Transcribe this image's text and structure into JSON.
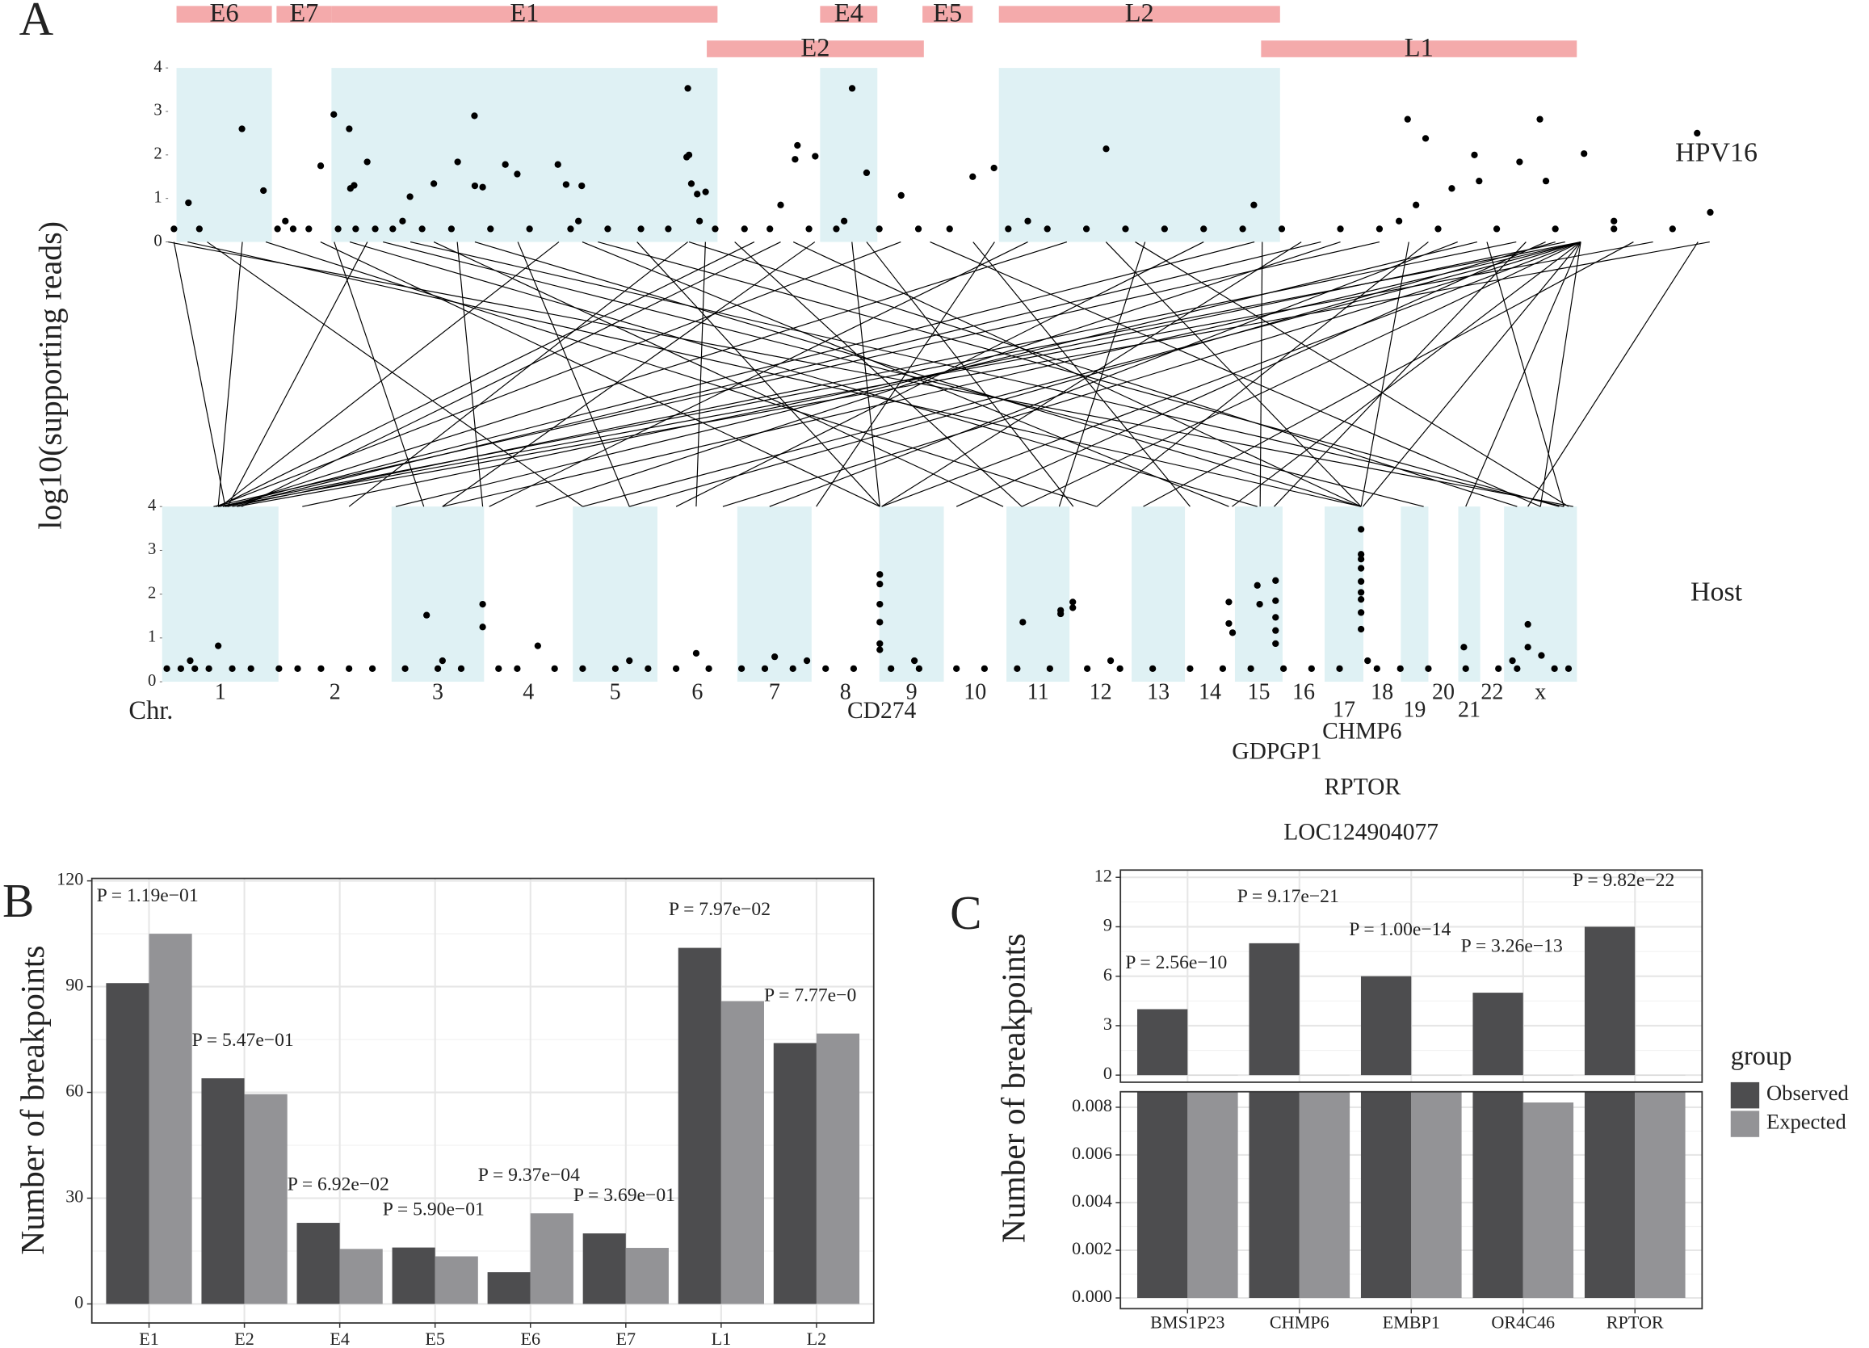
{
  "chart_data": [
    {
      "panel": "A",
      "type": "genome_scatter",
      "ylabel": "log10(supporting reads)",
      "ylim": [
        0,
        4
      ],
      "yticks": [
        0,
        1,
        2,
        3,
        4
      ],
      "genes": [
        {
          "name": "E6",
          "start": 43,
          "end": 531,
          "shaded": true
        },
        {
          "name": "E7",
          "start": 555,
          "end": 836,
          "shaded": false
        },
        {
          "name": "E1",
          "start": 836,
          "end": 2812,
          "shaded": true
        },
        {
          "name": "E2",
          "start": 2757,
          "end": 3868,
          "shaded": false
        },
        {
          "name": "E4",
          "start": 3337,
          "end": 3630,
          "shaded": true
        },
        {
          "name": "E5",
          "start": 3861,
          "end": 4118,
          "shaded": false
        },
        {
          "name": "L2",
          "start": 4252,
          "end": 5691,
          "shaded": true
        },
        {
          "name": "L1",
          "start": 5594,
          "end": 7210,
          "shaded": false
        }
      ],
      "tracks": [
        {
          "name": "HPV16",
          "xlim": [
            0,
            7906
          ],
          "x": [
            378,
            104,
            488,
            781,
            848,
            927,
            933,
            952,
            1019,
            1238,
            1360,
            1482,
            1568,
            1570,
            1610,
            1726,
            1787,
            1995,
            2037,
            2117,
            2660,
            2654,
            2666,
            2678,
            2708,
            2751,
            3135,
            3209,
            3221,
            3312,
            3501,
            3575,
            3752,
            4118,
            4227,
            4801,
            5557,
            6344,
            6436,
            6387,
            6570,
            6686,
            6710,
            6917,
            7021,
            7052,
            7247,
            7826,
            7893,
            30,
            160,
            560,
            640,
            720,
            870,
            960,
            1060,
            1150,
            1300,
            1450,
            1650,
            1850,
            2060,
            2250,
            2420,
            2560,
            2800,
            2950,
            3080,
            3280,
            3420,
            3640,
            3840,
            4000,
            4300,
            4500,
            4700,
            4900,
            5100,
            5300,
            5500,
            5700,
            6000,
            6200,
            6500,
            6800,
            7100,
            7400,
            7700,
            600,
            1200,
            2100,
            2720,
            3460,
            4400,
            6300,
            7400
          ],
          "values": [
            2.6,
            0.9,
            1.18,
            1.75,
            2.93,
            2.6,
            1.23,
            1.3,
            1.84,
            1.04,
            1.34,
            1.84,
            2.9,
            1.29,
            1.26,
            1.78,
            1.56,
            1.78,
            1.32,
            1.29,
            3.53,
            1.95,
            2.0,
            1.34,
            1.1,
            1.15,
            0.85,
            1.9,
            2.22,
            1.97,
            3.53,
            1.59,
            1.07,
            1.5,
            1.7,
            2.14,
            0.85,
            2.82,
            2.38,
            0.85,
            1.23,
            2.0,
            1.4,
            1.84,
            2.82,
            1.4,
            2.03,
            2.5,
            0.68,
            0.3,
            0.3,
            0.3,
            0.3,
            0.3,
            0.3,
            0.3,
            0.3,
            0.3,
            0.3,
            0.3,
            0.3,
            0.3,
            0.3,
            0.3,
            0.3,
            0.3,
            0.3,
            0.3,
            0.3,
            0.3,
            0.3,
            0.3,
            0.3,
            0.3,
            0.3,
            0.3,
            0.3,
            0.3,
            0.3,
            0.3,
            0.3,
            0.3,
            0.3,
            0.3,
            0.3,
            0.3,
            0.3,
            0.3,
            0.3,
            0.48,
            0.48,
            0.48,
            0.48,
            0.48,
            0.48,
            0.48,
            0.48
          ]
        },
        {
          "name": "Host",
          "xlim": [
            0,
            3028
          ],
          "axis_label": "Chr.",
          "chromosomes": [
            {
              "name": "1",
              "length": 249
            },
            {
              "name": "2",
              "length": 242
            },
            {
              "name": "3",
              "length": 198
            },
            {
              "name": "4",
              "length": 190
            },
            {
              "name": "5",
              "length": 181
            },
            {
              "name": "6",
              "length": 171
            },
            {
              "name": "7",
              "length": 159
            },
            {
              "name": "8",
              "length": 145
            },
            {
              "name": "9",
              "length": 138
            },
            {
              "name": "10",
              "length": 134
            },
            {
              "name": "11",
              "length": 135
            },
            {
              "name": "12",
              "length": 133
            },
            {
              "name": "13",
              "length": 114
            },
            {
              "name": "14",
              "length": 107
            },
            {
              "name": "15",
              "length": 102
            },
            {
              "name": "16",
              "length": 90
            },
            {
              "name": "17",
              "length": 83
            },
            {
              "name": "18",
              "length": 80
            },
            {
              "name": "19",
              "length": 59
            },
            {
              "name": "20",
              "length": 64
            },
            {
              "name": "21",
              "length": 47
            },
            {
              "name": "22",
              "length": 51
            },
            {
              "name": "x",
              "length": 156
            }
          ],
          "x": [
            120,
            566,
            686,
            686,
            804,
            1143,
            1311,
            1536,
            1536,
            1536,
            1536,
            1536,
            1536,
            1842,
            1923,
            1923,
            1949,
            1949,
            2283,
            2283,
            2291,
            2344,
            2349,
            2383,
            2383,
            2383,
            2383,
            2383,
            2566,
            2566,
            2566,
            2566,
            2566,
            2566,
            2566,
            2566,
            2566,
            2786,
            2923,
            2923,
            2952,
            10,
            40,
            70,
            100,
            150,
            190,
            250,
            290,
            340,
            400,
            450,
            520,
            590,
            640,
            720,
            760,
            840,
            900,
            970,
            1040,
            1100,
            1170,
            1240,
            1290,
            1350,
            1420,
            1480,
            1560,
            1620,
            1700,
            1760,
            1830,
            1900,
            1980,
            2050,
            2120,
            2200,
            2270,
            2330,
            2400,
            2460,
            2520,
            2600,
            2650,
            2710,
            2790,
            2860,
            2900,
            2980,
            3010,
            60,
            600,
            1000,
            1380,
            1610,
            2030,
            2580,
            2890
          ],
          "values": [
            0.82,
            1.52,
            1.77,
            1.25,
            0.82,
            0.65,
            0.57,
            2.45,
            2.23,
            1.77,
            1.36,
            0.87,
            0.73,
            1.36,
            1.63,
            1.55,
            1.82,
            1.69,
            1.82,
            1.33,
            1.12,
            2.2,
            1.77,
            2.31,
            1.85,
            1.47,
            1.17,
            0.87,
            3.48,
            2.91,
            2.8,
            2.59,
            2.29,
            2.04,
            1.88,
            1.58,
            1.2,
            0.79,
            1.31,
            0.79,
            0.6,
            0.3,
            0.3,
            0.3,
            0.3,
            0.3,
            0.3,
            0.3,
            0.3,
            0.3,
            0.3,
            0.3,
            0.3,
            0.3,
            0.3,
            0.3,
            0.3,
            0.3,
            0.3,
            0.3,
            0.3,
            0.3,
            0.3,
            0.3,
            0.3,
            0.3,
            0.3,
            0.3,
            0.3,
            0.3,
            0.3,
            0.3,
            0.3,
            0.3,
            0.3,
            0.3,
            0.3,
            0.3,
            0.3,
            0.3,
            0.3,
            0.3,
            0.3,
            0.3,
            0.3,
            0.3,
            0.3,
            0.3,
            0.3,
            0.3,
            0.3,
            0.48,
            0.48,
            0.48,
            0.48,
            0.48,
            0.48,
            0.48,
            0.48
          ],
          "annotations": [
            {
              "label": "CD274",
              "x": 1540
            },
            {
              "label": "CHMP6",
              "x": 2568
            },
            {
              "label": "GDPGP1",
              "x": 2386
            },
            {
              "label": "RPTOR",
              "x": 2569
            },
            {
              "label": "LOC124904077",
              "x": 2566
            }
          ]
        }
      ],
      "links": [
        [
          7230,
          120
        ],
        [
          7230,
          600
        ],
        [
          7230,
          900
        ],
        [
          7230,
          1200
        ],
        [
          7230,
          1540
        ],
        [
          7230,
          1840
        ],
        [
          7230,
          2290
        ],
        [
          7230,
          2570
        ],
        [
          7230,
          2790
        ],
        [
          7230,
          2950
        ],
        [
          7150,
          300
        ],
        [
          7100,
          1000
        ],
        [
          7050,
          1700
        ],
        [
          6950,
          2380
        ],
        [
          6900,
          150
        ],
        [
          6700,
          500
        ],
        [
          6600,
          1300
        ],
        [
          6450,
          2000
        ],
        [
          6350,
          2566
        ],
        [
          6200,
          110
        ],
        [
          6000,
          800
        ],
        [
          5800,
          1540
        ],
        [
          5600,
          2350
        ],
        [
          5560,
          130
        ],
        [
          5300,
          1100
        ],
        [
          5000,
          1920
        ],
        [
          4800,
          2566
        ],
        [
          4600,
          140
        ],
        [
          4400,
          700
        ],
        [
          4230,
          1400
        ],
        [
          4120,
          2200
        ],
        [
          3900,
          2950
        ],
        [
          3750,
          115
        ],
        [
          3575,
          1950
        ],
        [
          3500,
          1536
        ],
        [
          3310,
          600
        ],
        [
          3200,
          2566
        ],
        [
          3135,
          170
        ],
        [
          2900,
          1840
        ],
        [
          2750,
          1143
        ],
        [
          2666,
          2900
        ],
        [
          2660,
          400
        ],
        [
          2400,
          1536
        ],
        [
          2120,
          2283
        ],
        [
          2000,
          125
        ],
        [
          1790,
          1000
        ],
        [
          1570,
          2566
        ],
        [
          1480,
          686
        ],
        [
          1360,
          1800
        ],
        [
          1240,
          3000
        ],
        [
          1020,
          140
        ],
        [
          930,
          2344
        ],
        [
          850,
          560
        ],
        [
          780,
          1536
        ],
        [
          500,
          2000
        ],
        [
          380,
          120
        ],
        [
          200,
          900
        ],
        [
          100,
          2566
        ],
        [
          30,
          135
        ],
        [
          0,
          3020
        ],
        [
          7830,
          2923
        ],
        [
          7890,
          160
        ],
        [
          7500,
          2100
        ],
        [
          7600,
          135
        ],
        [
          6750,
          3000
        ],
        [
          5900,
          140
        ],
        [
          4950,
          3010
        ],
        [
          2200,
          2990
        ],
        [
          3000,
          120
        ],
        [
          1100,
          2700
        ]
      ]
    },
    {
      "panel": "B",
      "type": "bar",
      "ylabel": "Number of breakpoints",
      "categories": [
        "E1",
        "E2",
        "E4",
        "E5",
        "E6",
        "E7",
        "L1",
        "L2"
      ],
      "series": [
        {
          "name": "Observed",
          "color": "#4d4d4f",
          "values": [
            91,
            64,
            23,
            16,
            9,
            20,
            101,
            74
          ]
        },
        {
          "name": "Expected",
          "color": "#939396",
          "values": [
            105,
            59.5,
            15.6,
            13.5,
            25.7,
            15.9,
            85.9,
            76.7
          ]
        }
      ],
      "annotations": [
        "P = 1.19e−01",
        "P = 5.47e−01",
        "P = 6.92e−02",
        "P = 5.90e−01",
        "P = 9.37e−04",
        "P = 3.69e−01",
        "P = 7.97e−02",
        "P = 7.77e−0"
      ],
      "ylim": [
        -5.4,
        120.7
      ],
      "yticks": [
        0,
        30,
        60,
        90,
        120
      ],
      "grid": true
    },
    {
      "panel": "C",
      "type": "broken_bar",
      "ylabel": "Number of breakpoints",
      "categories": [
        "BMS1P23",
        "CHMP6",
        "EMBP1",
        "OR4C46",
        "RPTOR"
      ],
      "series": [
        {
          "name": "Observed",
          "color": "#4d4d4f",
          "values": [
            4,
            8,
            6,
            5,
            9
          ]
        },
        {
          "name": "Expected",
          "color": "#939396",
          "values": [
            0.0087,
            0.0087,
            0.0087,
            0.0082,
            0.0087
          ]
        }
      ],
      "annotations": [
        "P = 2.56e−10",
        "P = 9.17e−21",
        "P = 1.00e−14",
        "P = 3.26e−13",
        "P = 9.82e−22"
      ],
      "panels": [
        {
          "ylim": [
            -0.43,
            12.44
          ],
          "yticks": [
            0,
            3,
            6,
            9,
            12
          ]
        },
        {
          "ylim": [
            -0.00045,
            0.00865
          ],
          "yticks": [
            {
              "value": 0,
              "label": "0.000"
            },
            0.002,
            0.004,
            0.006,
            0.008
          ]
        }
      ],
      "legend_title": "group",
      "legend": "right",
      "grid": true
    }
  ]
}
